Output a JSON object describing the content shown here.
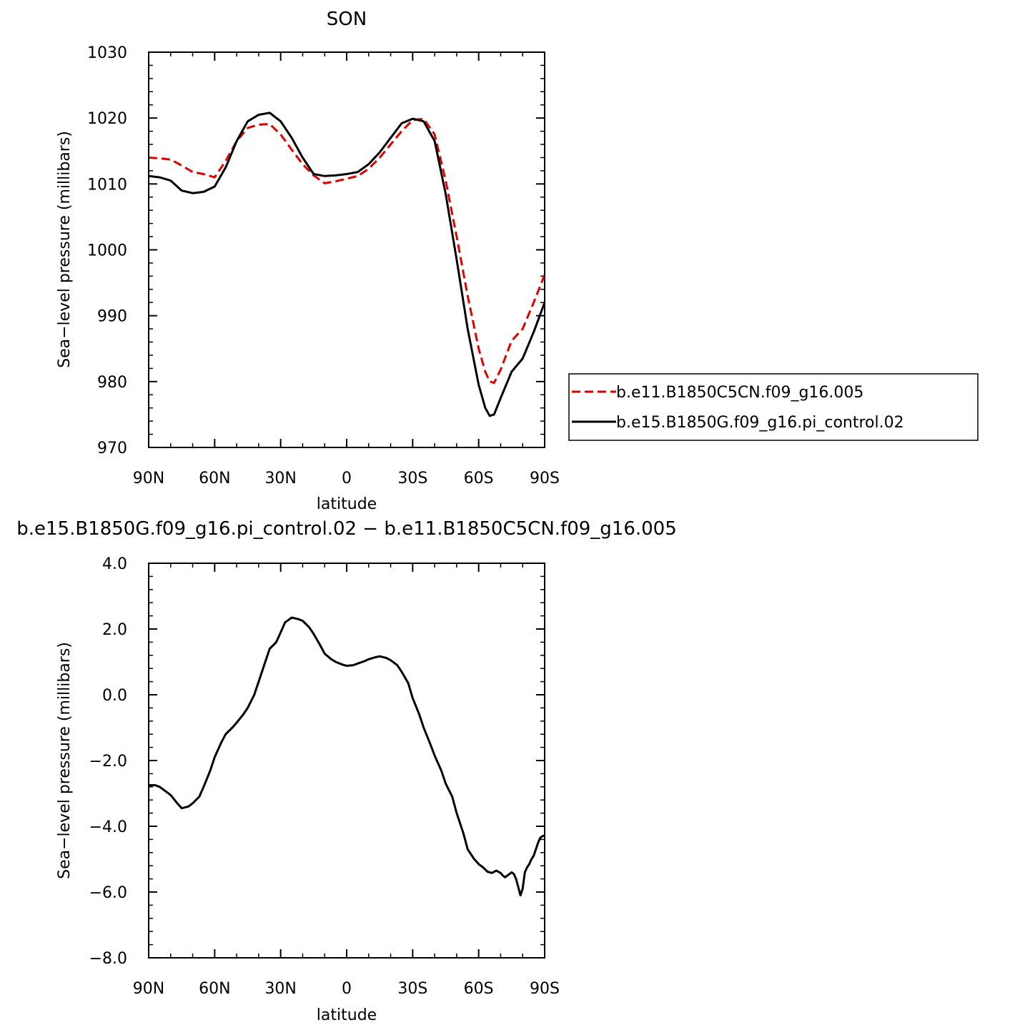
{
  "chart_data": [
    {
      "type": "line",
      "title": "SON",
      "xlabel": "latitude",
      "ylabel": "Sea−level pressure (millibars)",
      "x_tick_labels": [
        "90N",
        "60N",
        "30N",
        "0",
        "30S",
        "60S",
        "90S"
      ],
      "x_tick_values": [
        90,
        60,
        30,
        0,
        -30,
        -60,
        -90
      ],
      "xlim": [
        90,
        -90
      ],
      "ylim": [
        970,
        1030
      ],
      "y_tick_labels": [
        "970",
        "980",
        "990",
        "1000",
        "1010",
        "1020",
        "1030"
      ],
      "y_tick_values": [
        970,
        980,
        990,
        1000,
        1010,
        1020,
        1030
      ],
      "legend_position": "right",
      "series": [
        {
          "name": "b.e11.B1850C5CN.f09_g16.005",
          "color": "#e00000",
          "dash": true,
          "x": [
            90,
            85,
            80,
            75,
            70,
            65,
            60,
            55,
            50,
            45,
            40,
            35,
            30,
            25,
            20,
            15,
            10,
            5,
            0,
            -5,
            -10,
            -15,
            -20,
            -25,
            -30,
            -35,
            -40,
            -45,
            -50,
            -55,
            -60,
            -63,
            -65,
            -67,
            -70,
            -75,
            -80,
            -85,
            -90
          ],
          "y": [
            1014.0,
            1013.9,
            1013.7,
            1012.8,
            1011.8,
            1011.5,
            1011.0,
            1013.5,
            1016.5,
            1018.5,
            1019.0,
            1019.1,
            1017.5,
            1015.2,
            1013.0,
            1011.3,
            1010.1,
            1010.4,
            1010.8,
            1011.2,
            1012.3,
            1014.0,
            1016.0,
            1018.0,
            1019.7,
            1019.9,
            1017.5,
            1010.5,
            1002.0,
            993.0,
            985.0,
            981.5,
            980.0,
            979.8,
            981.8,
            986.2,
            988.0,
            992.0,
            996.2
          ]
        },
        {
          "name": "b.e15.B1850G.f09_g16.pi_control.02",
          "color": "#000000",
          "dash": false,
          "x": [
            90,
            85,
            80,
            75,
            70,
            65,
            60,
            55,
            50,
            45,
            40,
            35,
            30,
            25,
            20,
            15,
            10,
            5,
            0,
            -5,
            -10,
            -15,
            -20,
            -25,
            -30,
            -35,
            -40,
            -45,
            -50,
            -55,
            -60,
            -63,
            -65,
            -67,
            -70,
            -75,
            -80,
            -85,
            -90
          ],
          "y": [
            1011.2,
            1011.0,
            1010.5,
            1009.0,
            1008.6,
            1008.8,
            1009.6,
            1012.5,
            1016.5,
            1019.5,
            1020.5,
            1020.8,
            1019.5,
            1017.0,
            1014.0,
            1011.5,
            1011.2,
            1011.3,
            1011.5,
            1011.8,
            1013.0,
            1014.8,
            1017.0,
            1019.2,
            1019.9,
            1019.5,
            1016.5,
            1008.5,
            998.5,
            988.0,
            979.5,
            976.0,
            974.8,
            975.0,
            977.5,
            981.5,
            983.5,
            987.5,
            992.0
          ]
        }
      ]
    },
    {
      "type": "line",
      "title": "b.e15.B1850G.f09_g16.pi_control.02 − b.e11.B1850C5CN.f09_g16.005",
      "xlabel": "latitude",
      "ylabel": "Sea−level pressure (millibars)",
      "x_tick_labels": [
        "90N",
        "60N",
        "30N",
        "0",
        "30S",
        "60S",
        "90S"
      ],
      "x_tick_values": [
        90,
        60,
        30,
        0,
        -30,
        -60,
        -90
      ],
      "xlim": [
        90,
        -90
      ],
      "ylim": [
        -8,
        4
      ],
      "y_tick_labels": [
        "−8.0",
        "−6.0",
        "−4.0",
        "−2.0",
        "0.0",
        "2.0",
        "4.0"
      ],
      "y_tick_values": [
        -8,
        -6,
        -4,
        -2,
        0,
        2,
        4
      ],
      "series": [
        {
          "color": "#000000",
          "dash": false,
          "x": [
            90,
            87,
            85,
            82,
            80,
            77,
            75,
            72,
            70,
            67,
            65,
            62,
            60,
            57,
            55,
            52,
            50,
            47,
            45,
            42,
            40,
            37,
            35,
            32,
            30,
            28,
            25,
            22,
            20,
            17,
            15,
            12,
            10,
            7,
            5,
            2,
            0,
            -3,
            -5,
            -8,
            -10,
            -13,
            -15,
            -18,
            -20,
            -23,
            -25,
            -28,
            -30,
            -33,
            -35,
            -38,
            -40,
            -43,
            -45,
            -48,
            -50,
            -53,
            -55,
            -58,
            -60,
            -62,
            -64,
            -66,
            -68,
            -70,
            -71,
            -72,
            -73,
            -74,
            -75,
            -76,
            -77,
            -78,
            -79,
            -80,
            -81,
            -82,
            -83,
            -84,
            -85,
            -86,
            -87,
            -88,
            -89,
            -90
          ],
          "y": [
            -2.75,
            -2.75,
            -2.8,
            -2.95,
            -3.05,
            -3.3,
            -3.45,
            -3.4,
            -3.3,
            -3.1,
            -2.8,
            -2.3,
            -1.9,
            -1.45,
            -1.2,
            -1.0,
            -0.85,
            -0.6,
            -0.4,
            0.0,
            0.4,
            1.0,
            1.4,
            1.6,
            1.9,
            2.2,
            2.35,
            2.3,
            2.25,
            2.05,
            1.85,
            1.5,
            1.25,
            1.08,
            1.0,
            0.92,
            0.88,
            0.9,
            0.95,
            1.02,
            1.08,
            1.14,
            1.17,
            1.12,
            1.05,
            0.9,
            0.7,
            0.35,
            -0.1,
            -0.6,
            -1.0,
            -1.5,
            -1.85,
            -2.3,
            -2.7,
            -3.1,
            -3.6,
            -4.2,
            -4.7,
            -5.0,
            -5.15,
            -5.25,
            -5.38,
            -5.42,
            -5.35,
            -5.42,
            -5.5,
            -5.55,
            -5.5,
            -5.45,
            -5.4,
            -5.45,
            -5.6,
            -5.85,
            -6.1,
            -5.9,
            -5.4,
            -5.25,
            -5.15,
            -5.0,
            -4.9,
            -4.7,
            -4.5,
            -4.35,
            -4.3,
            -4.28
          ]
        }
      ]
    }
  ]
}
